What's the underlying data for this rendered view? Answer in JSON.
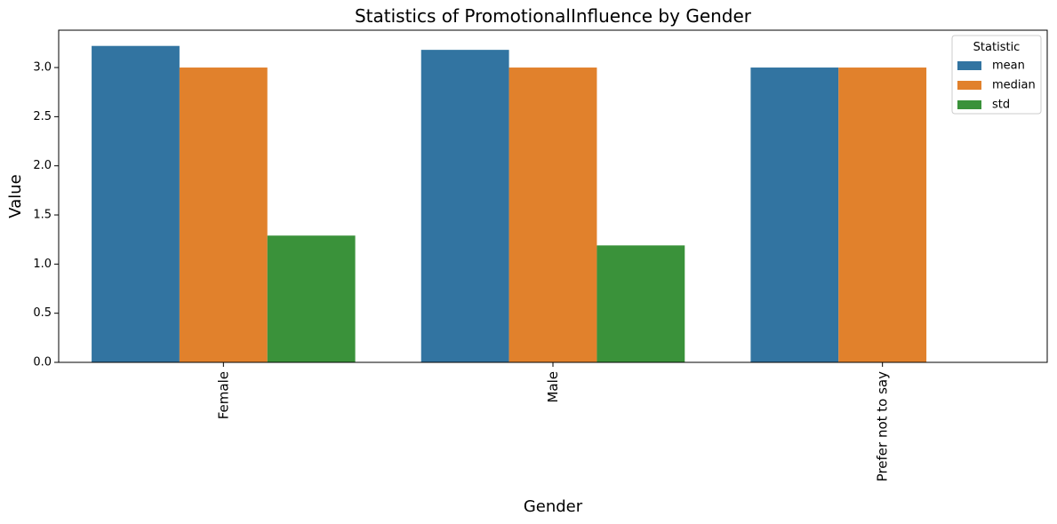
{
  "chart_data": {
    "type": "bar",
    "title": "Statistics of PromotionalInfluence by Gender",
    "xlabel": "Gender",
    "ylabel": "Value",
    "categories": [
      "Female",
      "Male",
      "Prefer not to say"
    ],
    "series": [
      {
        "name": "mean",
        "values": [
          3.22,
          3.18,
          3.0
        ],
        "color": "#3274a1"
      },
      {
        "name": "median",
        "values": [
          3.0,
          3.0,
          3.0
        ],
        "color": "#e1812c"
      },
      {
        "name": "std",
        "values": [
          1.29,
          1.19,
          null
        ],
        "color": "#3a923a"
      }
    ],
    "ylim": [
      0,
      3.38
    ],
    "yticks": [
      "0.0",
      "0.5",
      "1.0",
      "1.5",
      "2.0",
      "2.5",
      "3.0"
    ],
    "legend": {
      "title": "Statistic",
      "placement": "top-right"
    },
    "grid": false
  }
}
